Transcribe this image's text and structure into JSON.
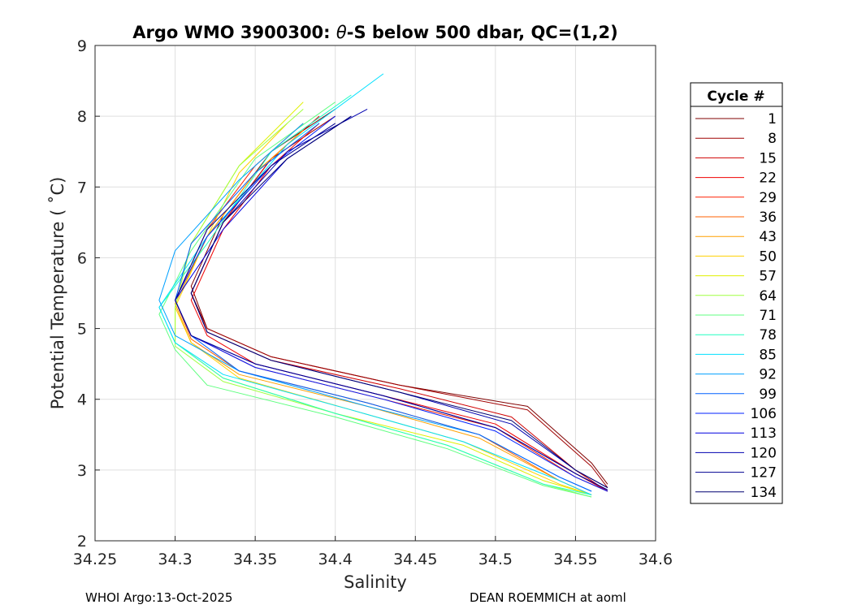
{
  "chart_data": {
    "type": "line",
    "title_prefix": "Argo WMO 3900300: ",
    "title_theta": "θ",
    "title_suffix": "-S below 500 dbar,  QC=(1,2)",
    "xlabel": "Salinity",
    "ylabel": "Potential Temperature ( ˚C)",
    "xlim": [
      34.25,
      34.6
    ],
    "ylim": [
      2,
      9
    ],
    "xticks": [
      "34.25",
      "34.3",
      "34.35",
      "34.4",
      "34.45",
      "34.5",
      "34.55",
      "34.6"
    ],
    "yticks": [
      "2",
      "3",
      "4",
      "5",
      "6",
      "7",
      "8",
      "9"
    ],
    "grid": true,
    "legend_title": "Cycle #",
    "legend_position": "outside-right",
    "series": [
      {
        "name": "1",
        "color": "#800000",
        "s": [
          34.4,
          34.36,
          34.33,
          34.31,
          34.32,
          34.36,
          34.44,
          34.52,
          34.56,
          34.57
        ],
        "t": [
          8.1,
          7.5,
          6.6,
          5.6,
          5.0,
          4.6,
          4.2,
          3.9,
          3.1,
          2.8
        ]
      },
      {
        "name": "8",
        "color": "#a00000",
        "s": [
          34.4,
          34.36,
          34.33,
          34.31,
          34.32,
          34.36,
          34.44,
          34.52,
          34.56,
          34.57
        ],
        "t": [
          8.0,
          7.4,
          6.5,
          5.5,
          5.0,
          4.6,
          4.2,
          3.85,
          3.05,
          2.75
        ]
      },
      {
        "name": "15",
        "color": "#d00000",
        "s": [
          34.39,
          34.36,
          34.33,
          34.31,
          34.32,
          34.36,
          34.44,
          34.51,
          34.55,
          34.57
        ],
        "t": [
          8.0,
          7.4,
          6.5,
          5.5,
          4.95,
          4.55,
          4.15,
          3.75,
          3.0,
          2.7
        ]
      },
      {
        "name": "22",
        "color": "#f00000",
        "s": [
          34.39,
          34.36,
          34.33,
          34.31,
          34.32,
          34.35,
          34.43,
          34.5,
          34.55,
          34.57
        ],
        "t": [
          7.9,
          7.3,
          6.4,
          5.4,
          4.9,
          4.5,
          4.05,
          3.65,
          2.95,
          2.7
        ]
      },
      {
        "name": "29",
        "color": "#ff2000",
        "s": [
          34.38,
          34.35,
          34.32,
          34.3,
          34.31,
          34.35,
          34.43,
          34.5,
          34.55,
          34.57
        ],
        "t": [
          7.9,
          7.3,
          6.4,
          5.4,
          4.9,
          4.45,
          4.0,
          3.6,
          2.9,
          2.7
        ]
      },
      {
        "name": "36",
        "color": "#ff6000",
        "s": [
          34.38,
          34.35,
          34.32,
          34.3,
          34.31,
          34.34,
          34.42,
          34.49,
          34.54,
          34.56
        ],
        "t": [
          7.8,
          7.2,
          6.3,
          5.4,
          4.85,
          4.4,
          3.95,
          3.5,
          2.85,
          2.65
        ]
      },
      {
        "name": "43",
        "color": "#ffa000",
        "s": [
          34.38,
          34.35,
          34.32,
          34.3,
          34.31,
          34.34,
          34.42,
          34.49,
          34.54,
          34.56
        ],
        "t": [
          7.8,
          7.2,
          6.3,
          5.35,
          4.8,
          4.35,
          3.9,
          3.45,
          2.85,
          2.65
        ]
      },
      {
        "name": "50",
        "color": "#ffd000",
        "s": [
          34.37,
          34.34,
          34.32,
          34.3,
          34.31,
          34.34,
          34.41,
          34.48,
          34.54,
          34.56
        ],
        "t": [
          7.9,
          7.2,
          6.3,
          5.3,
          4.8,
          4.3,
          3.85,
          3.4,
          2.8,
          2.65
        ]
      },
      {
        "name": "57",
        "color": "#e0f000",
        "s": [
          34.38,
          34.34,
          34.31,
          34.3,
          34.3,
          34.33,
          34.4,
          34.48,
          34.53,
          34.56
        ],
        "t": [
          8.2,
          7.3,
          6.2,
          5.3,
          4.8,
          4.3,
          3.8,
          3.35,
          2.85,
          2.65
        ]
      },
      {
        "name": "64",
        "color": "#a0ff40",
        "s": [
          34.38,
          34.34,
          34.31,
          34.3,
          34.3,
          34.33,
          34.4,
          34.47,
          34.53,
          34.56
        ],
        "t": [
          8.1,
          7.3,
          6.2,
          5.3,
          4.75,
          4.25,
          3.8,
          3.35,
          2.8,
          2.62
        ]
      },
      {
        "name": "71",
        "color": "#60ff80",
        "s": [
          34.4,
          34.35,
          34.31,
          34.29,
          34.3,
          34.32,
          34.4,
          34.47,
          34.53,
          34.56
        ],
        "t": [
          8.2,
          7.4,
          6.1,
          5.2,
          4.7,
          4.2,
          3.75,
          3.3,
          2.78,
          2.62
        ]
      },
      {
        "name": "78",
        "color": "#20ffc0",
        "s": [
          34.41,
          34.36,
          34.32,
          34.29,
          34.3,
          34.33,
          34.4,
          34.47,
          34.53,
          34.56
        ],
        "t": [
          8.3,
          7.5,
          6.2,
          5.3,
          4.8,
          4.3,
          3.8,
          3.35,
          2.8,
          2.65
        ]
      },
      {
        "name": "85",
        "color": "#00e0ff",
        "s": [
          34.43,
          34.37,
          34.32,
          34.29,
          34.3,
          34.33,
          34.41,
          34.48,
          34.54,
          34.56
        ],
        "t": [
          8.6,
          7.6,
          6.3,
          5.3,
          4.8,
          4.35,
          3.85,
          3.4,
          2.85,
          2.65
        ]
      },
      {
        "name": "92",
        "color": "#00a0ff",
        "s": [
          34.38,
          34.34,
          34.3,
          34.29,
          34.3,
          34.34,
          34.42,
          34.49,
          34.54,
          34.56
        ],
        "t": [
          7.9,
          7.1,
          6.1,
          5.4,
          4.9,
          4.4,
          3.9,
          3.5,
          2.9,
          2.7
        ]
      },
      {
        "name": "99",
        "color": "#0060ff",
        "s": [
          34.39,
          34.35,
          34.31,
          34.3,
          34.31,
          34.34,
          34.42,
          34.49,
          34.54,
          34.56
        ],
        "t": [
          7.9,
          7.2,
          6.2,
          5.4,
          4.9,
          4.4,
          3.95,
          3.5,
          2.9,
          2.7
        ]
      },
      {
        "name": "106",
        "color": "#0020ff",
        "s": [
          34.4,
          34.36,
          34.32,
          34.3,
          34.31,
          34.35,
          34.43,
          34.5,
          34.55,
          34.57
        ],
        "t": [
          8.0,
          7.3,
          6.3,
          5.4,
          4.9,
          4.45,
          4.0,
          3.55,
          2.9,
          2.7
        ]
      },
      {
        "name": "113",
        "color": "#0000e0",
        "s": [
          34.41,
          34.37,
          34.33,
          34.3,
          34.31,
          34.35,
          34.43,
          34.5,
          34.55,
          34.57
        ],
        "t": [
          8.0,
          7.4,
          6.4,
          5.4,
          4.9,
          4.5,
          4.05,
          3.6,
          2.95,
          2.72
        ]
      },
      {
        "name": "120",
        "color": "#0000b0",
        "s": [
          34.42,
          34.37,
          34.33,
          34.31,
          34.32,
          34.36,
          34.44,
          34.51,
          34.55,
          34.57
        ],
        "t": [
          8.1,
          7.5,
          6.5,
          5.5,
          4.95,
          4.55,
          4.1,
          3.65,
          3.0,
          2.75
        ]
      },
      {
        "name": "127",
        "color": "#000090",
        "s": [
          34.4,
          34.36,
          34.32,
          34.3,
          34.31,
          34.35,
          34.43,
          34.5,
          34.55,
          34.57
        ],
        "t": [
          7.9,
          7.3,
          6.4,
          5.4,
          4.9,
          4.5,
          4.05,
          3.6,
          2.95,
          2.72
        ]
      },
      {
        "name": "134",
        "color": "#000070",
        "s": [
          34.41,
          34.37,
          34.33,
          34.31,
          34.32,
          34.36,
          34.44,
          34.51,
          34.55,
          34.57
        ],
        "t": [
          8.0,
          7.4,
          6.5,
          5.5,
          4.95,
          4.55,
          4.1,
          3.7,
          3.0,
          2.75
        ]
      }
    ]
  },
  "footer": {
    "left": "WHOI Argo:13-Oct-2025",
    "right": "DEAN ROEMMICH at aoml"
  }
}
